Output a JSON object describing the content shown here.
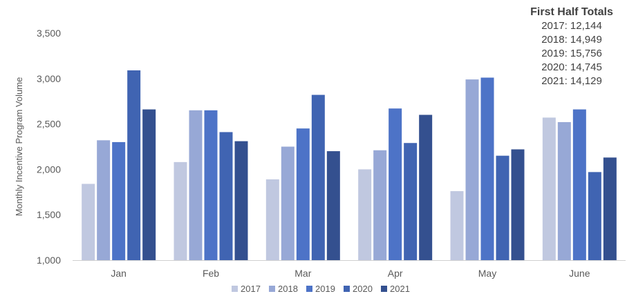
{
  "chart_data": {
    "type": "bar",
    "ylabel": "Monthly Incentive Program Volume",
    "xlabel": "",
    "ylim": [
      1000,
      3500
    ],
    "yticks": [
      "1,000",
      "1,500",
      "2,000",
      "2,500",
      "3,000",
      "3,500"
    ],
    "ytick_values": [
      1000,
      1500,
      2000,
      2500,
      3000,
      3500
    ],
    "grid": false,
    "legend_position": "bottom",
    "categories": [
      "Jan",
      "Feb",
      "Mar",
      "Apr",
      "May",
      "June"
    ],
    "series": [
      {
        "name": "2017",
        "color": "#c0c8e0",
        "values": [
          1840,
          2080,
          1890,
          2000,
          1760,
          2570
        ]
      },
      {
        "name": "2018",
        "color": "#97a8d6",
        "values": [
          2320,
          2650,
          2250,
          2210,
          2990,
          2520
        ]
      },
      {
        "name": "2019",
        "color": "#4d73c7",
        "values": [
          2300,
          2650,
          2450,
          2670,
          3010,
          2660
        ]
      },
      {
        "name": "2020",
        "color": "#4064b2",
        "values": [
          3090,
          2410,
          2820,
          2290,
          2150,
          1970
        ]
      },
      {
        "name": "2021",
        "color": "#34508f",
        "values": [
          2660,
          2310,
          2200,
          2600,
          2220,
          2130
        ]
      }
    ]
  },
  "totals": {
    "title": "First Half Totals",
    "items": [
      "2017: 12,144",
      "2018: 14,949",
      "2019: 15,756",
      "2020: 14,745",
      "2021: 14,129"
    ]
  }
}
